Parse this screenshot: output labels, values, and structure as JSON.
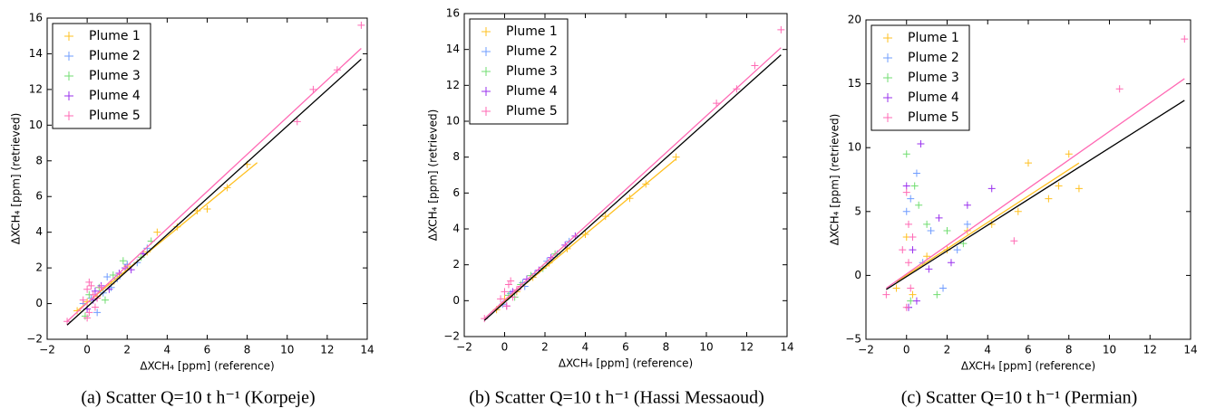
{
  "chart_data": [
    {
      "type": "scatter",
      "caption": "(a) Scatter Q=10 t h⁻¹ (Korpeje)",
      "x_label": "ΔXCH₄ [ppm] (reference)",
      "y_label": "ΔXCH₄ [ppm] (retrieved)",
      "xlim": [
        -2,
        14
      ],
      "ylim": [
        -2,
        16
      ],
      "xticks": [
        {
          "value": -2,
          "label": "−2"
        },
        0,
        2,
        4,
        6,
        8,
        10,
        12,
        14
      ],
      "yticks": [
        {
          "value": -2,
          "label": "−2"
        },
        0,
        2,
        4,
        6,
        8,
        10,
        12,
        14,
        16
      ],
      "legend": "upper left",
      "series": [
        {
          "name": "Plume 1",
          "color": "#ffc020",
          "x": [
            0.0,
            0.5,
            1.2,
            2.0,
            3.0,
            3.5,
            4.5,
            5.5,
            6.0,
            7.0,
            8.0,
            -0.5
          ],
          "y": [
            0.1,
            0.4,
            1.1,
            2.1,
            2.9,
            4.0,
            4.3,
            5.2,
            5.3,
            6.5,
            7.8,
            -0.4
          ]
        },
        {
          "name": "Plume 2",
          "color": "#6f9cff",
          "x": [
            0.2,
            0.8,
            1.0,
            1.5,
            2.0,
            2.5,
            3.0,
            0.5,
            -0.2,
            1.2
          ],
          "y": [
            0.3,
            0.6,
            1.5,
            1.4,
            2.2,
            2.3,
            3.1,
            -0.5,
            0.0,
            0.9
          ]
        },
        {
          "name": "Plume 3",
          "color": "#70dd70",
          "x": [
            0.1,
            0.6,
            1.3,
            1.8,
            2.7,
            3.2,
            0.9,
            -0.1
          ],
          "y": [
            0.5,
            0.9,
            1.6,
            2.4,
            2.6,
            3.5,
            0.2,
            -0.7
          ]
        },
        {
          "name": "Plume 4",
          "color": "#9a30ee",
          "x": [
            0.3,
            0.7,
            1.1,
            1.6,
            2.2,
            2.8,
            0.0,
            0.4,
            1.9
          ],
          "y": [
            0.2,
            1.0,
            0.8,
            1.7,
            1.9,
            2.8,
            -0.3,
            0.7,
            2.0
          ]
        },
        {
          "name": "Plume 5",
          "color": "#ff69b4",
          "x": [
            -1.0,
            -0.2,
            0.0,
            0.1,
            0.2,
            0.3,
            0.5,
            0.7,
            0.0,
            0.1,
            10.5,
            11.3,
            12.5,
            13.7,
            0.4
          ],
          "y": [
            -1.0,
            0.2,
            0.8,
            -0.5,
            1.0,
            0.5,
            0.3,
            0.9,
            -0.8,
            1.2,
            10.2,
            12.0,
            13.1,
            15.6,
            -0.2
          ]
        }
      ],
      "lines": [
        {
          "color": "#ffc020",
          "x": [
            -0.5,
            8.5
          ],
          "y": [
            -0.4,
            7.9
          ]
        },
        {
          "color": "#ff69b4",
          "x": [
            -1.0,
            13.7
          ],
          "y": [
            -1.0,
            14.3
          ]
        },
        {
          "color": "#000000",
          "x": [
            -1.0,
            13.7
          ],
          "y": [
            -1.2,
            13.7
          ]
        }
      ]
    },
    {
      "type": "scatter",
      "caption": "(b) Scatter Q=10 t h⁻¹ (Hassi Messaoud)",
      "x_label": "ΔXCH₄ [ppm] (reference)",
      "y_label": "ΔXCH₄ [ppm] (retrieved)",
      "xlim": [
        -2,
        14
      ],
      "ylim": [
        -2,
        16
      ],
      "xticks": [
        {
          "value": -2,
          "label": "−2"
        },
        0,
        2,
        4,
        6,
        8,
        10,
        12,
        14
      ],
      "yticks": [
        {
          "value": -2,
          "label": "−2"
        },
        0,
        2,
        4,
        6,
        8,
        10,
        12,
        14,
        16
      ],
      "legend": "upper left",
      "series": [
        {
          "name": "Plume 1",
          "color": "#ffc020",
          "x": [
            0.0,
            0.6,
            1.4,
            2.2,
            3.1,
            4.0,
            5.0,
            6.2,
            7.0,
            8.5,
            -0.4
          ],
          "y": [
            0.1,
            0.5,
            1.3,
            2.1,
            2.9,
            3.7,
            4.7,
            5.7,
            6.5,
            8.0,
            -0.5
          ]
        },
        {
          "name": "Plume 2",
          "color": "#6f9cff",
          "x": [
            0.3,
            0.9,
            1.5,
            2.1,
            2.6,
            3.2,
            1.0,
            -0.1
          ],
          "y": [
            0.4,
            1.0,
            1.5,
            2.2,
            2.6,
            3.3,
            0.8,
            -0.2
          ]
        },
        {
          "name": "Plume 3",
          "color": "#70dd70",
          "x": [
            0.2,
            0.8,
            1.3,
            1.9,
            2.5,
            0.5
          ],
          "y": [
            0.3,
            0.9,
            1.4,
            1.8,
            2.6,
            0.2
          ]
        },
        {
          "name": "Plume 4",
          "color": "#9a30ee",
          "x": [
            0.4,
            1.1,
            1.7,
            2.3,
            3.0,
            3.5,
            0.1
          ],
          "y": [
            0.5,
            1.2,
            1.7,
            2.4,
            3.1,
            3.6,
            -0.3
          ]
        },
        {
          "name": "Plume 5",
          "color": "#ff69b4",
          "x": [
            -1.0,
            -0.2,
            0.0,
            0.2,
            0.4,
            0.6,
            0.8,
            0.1,
            0.3,
            10.5,
            11.5,
            12.4,
            13.7
          ],
          "y": [
            -1.0,
            0.1,
            0.5,
            0.9,
            0.2,
            0.6,
            0.8,
            -0.3,
            1.1,
            11.0,
            11.8,
            13.1,
            15.1
          ]
        }
      ],
      "lines": [
        {
          "color": "#ffc020",
          "x": [
            -0.5,
            8.5
          ],
          "y": [
            -0.5,
            7.9
          ]
        },
        {
          "color": "#ff69b4",
          "x": [
            -1.0,
            13.7
          ],
          "y": [
            -1.0,
            14.1
          ]
        },
        {
          "color": "#000000",
          "x": [
            -1.0,
            13.7
          ],
          "y": [
            -1.1,
            13.7
          ]
        }
      ]
    },
    {
      "type": "scatter",
      "caption": "(c) Scatter Q=10 t h⁻¹ (Permian)",
      "x_label": "ΔXCH₄ [ppm] (reference)",
      "y_label": "ΔXCH₄ [ppm] (retrieved)",
      "xlim": [
        -2,
        14
      ],
      "ylim": [
        -5,
        20
      ],
      "xticks": [
        {
          "value": -2,
          "label": "−2"
        },
        0,
        2,
        4,
        6,
        8,
        10,
        12,
        14
      ],
      "yticks": [
        {
          "value": -5,
          "label": "−5"
        },
        0,
        5,
        10,
        15,
        20
      ],
      "legend": "upper left",
      "series": [
        {
          "name": "Plume 1",
          "color": "#ffc020",
          "x": [
            0.0,
            0.3,
            1.0,
            2.0,
            3.0,
            4.2,
            5.5,
            6.0,
            7.0,
            7.5,
            8.0,
            8.5,
            -0.5
          ],
          "y": [
            3.0,
            -1.5,
            1.5,
            2.0,
            3.5,
            4.0,
            5.0,
            8.8,
            6.0,
            7.0,
            9.5,
            6.8,
            -1.0
          ]
        },
        {
          "name": "Plume 2",
          "color": "#6f9cff",
          "x": [
            0.0,
            0.1,
            0.5,
            0.8,
            1.2,
            1.8,
            2.5,
            3.0,
            0.2
          ],
          "y": [
            5.0,
            -2.5,
            8.0,
            1.0,
            3.5,
            -1.0,
            2.0,
            4.0,
            6.0
          ]
        },
        {
          "name": "Plume 3",
          "color": "#70dd70",
          "x": [
            0.0,
            0.2,
            0.6,
            1.0,
            1.5,
            2.0,
            2.8,
            0.4
          ],
          "y": [
            9.5,
            -2.0,
            5.5,
            4.0,
            -1.5,
            3.5,
            2.5,
            7.0
          ]
        },
        {
          "name": "Plume 4",
          "color": "#9a30ee",
          "x": [
            0.0,
            0.1,
            0.3,
            0.7,
            1.1,
            1.6,
            2.2,
            3.0,
            4.2,
            0.5
          ],
          "y": [
            7.0,
            -2.5,
            2.0,
            10.3,
            0.5,
            4.5,
            1.0,
            5.5,
            6.8,
            -2.0
          ]
        },
        {
          "name": "Plume 5",
          "color": "#ff69b4",
          "x": [
            -1.0,
            -0.2,
            0.0,
            0.0,
            0.1,
            0.1,
            0.2,
            0.3,
            5.3,
            10.5,
            13.7
          ],
          "y": [
            -1.5,
            2.0,
            -2.5,
            6.5,
            1.0,
            4.0,
            -1.0,
            3.0,
            2.7,
            14.6,
            18.5
          ]
        }
      ],
      "lines": [
        {
          "color": "#ffc020",
          "x": [
            -0.5,
            8.5
          ],
          "y": [
            -0.5,
            8.8
          ]
        },
        {
          "color": "#ff69b4",
          "x": [
            -1.0,
            13.7
          ],
          "y": [
            -1.0,
            15.4
          ]
        },
        {
          "color": "#000000",
          "x": [
            -1.0,
            13.7
          ],
          "y": [
            -1.1,
            13.7
          ]
        }
      ]
    }
  ]
}
